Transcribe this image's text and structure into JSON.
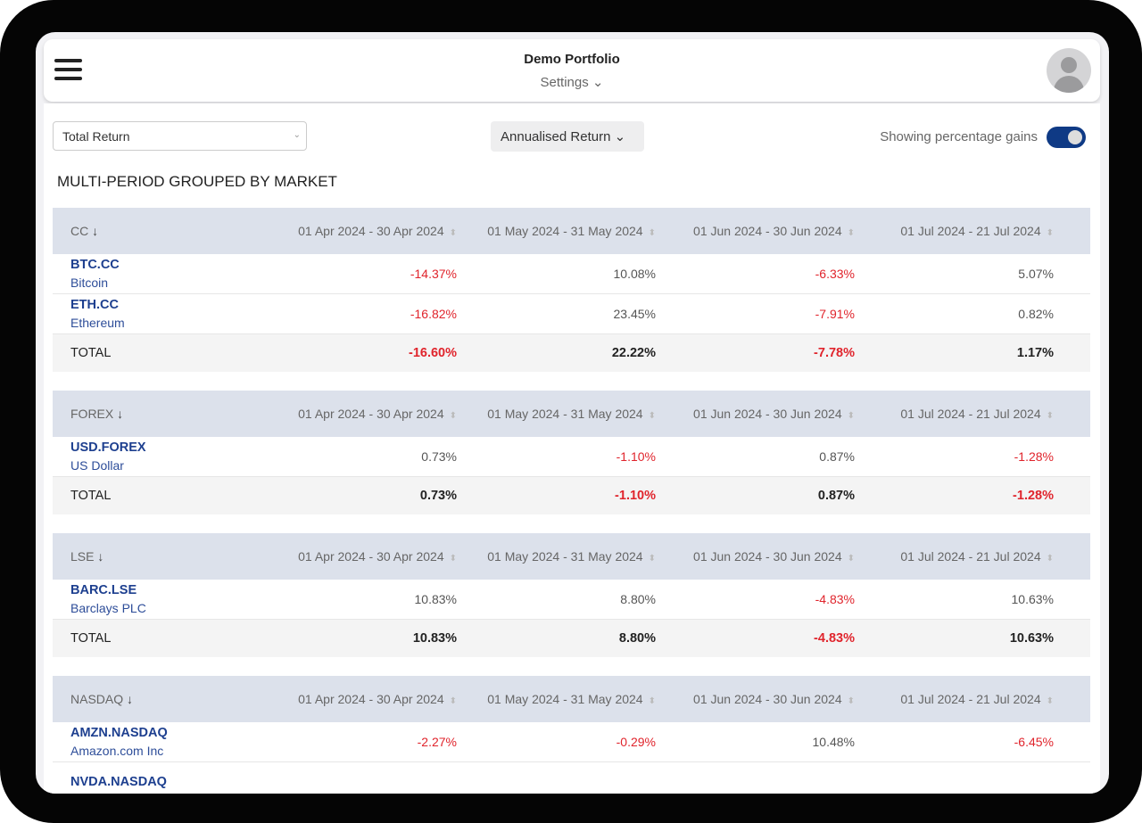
{
  "header": {
    "title": "Demo Portfolio",
    "settings": "Settings"
  },
  "controls": {
    "return_select": "Total Return",
    "annualised": "Annualised Return",
    "toggle_label": "Showing percentage gains",
    "toggle_on": true
  },
  "section_title": "MULTI-PERIOD GROUPED BY MARKET",
  "periods": [
    "01 Apr 2024 - 30 Apr 2024",
    "01 May 2024 - 31 May 2024",
    "01 Jun 2024 - 30 Jun 2024",
    "01 Jul 2024 - 21 Jul 2024"
  ],
  "total_label": "TOTAL",
  "colors": {
    "negative": "#e0242c",
    "accent": "#0f3a85",
    "ticker": "#1d3f8f"
  },
  "groups": [
    {
      "market": "CC",
      "rows": [
        {
          "ticker": "BTC.CC",
          "name": "Bitcoin",
          "values": [
            "-14.37%",
            "10.08%",
            "-6.33%",
            "5.07%"
          ]
        },
        {
          "ticker": "ETH.CC",
          "name": "Ethereum",
          "values": [
            "-16.82%",
            "23.45%",
            "-7.91%",
            "0.82%"
          ]
        }
      ],
      "total": [
        "-16.60%",
        "22.22%",
        "-7.78%",
        "1.17%"
      ]
    },
    {
      "market": "FOREX",
      "rows": [
        {
          "ticker": "USD.FOREX",
          "name": "US Dollar",
          "values": [
            "0.73%",
            "-1.10%",
            "0.87%",
            "-1.28%"
          ]
        }
      ],
      "total": [
        "0.73%",
        "-1.10%",
        "0.87%",
        "-1.28%"
      ]
    },
    {
      "market": "LSE",
      "rows": [
        {
          "ticker": "BARC.LSE",
          "name": "Barclays PLC",
          "values": [
            "10.83%",
            "8.80%",
            "-4.83%",
            "10.63%"
          ]
        }
      ],
      "total": [
        "10.83%",
        "8.80%",
        "-4.83%",
        "10.63%"
      ]
    },
    {
      "market": "NASDAQ",
      "rows": [
        {
          "ticker": "AMZN.NASDAQ",
          "name": "Amazon.com Inc",
          "values": [
            "-2.27%",
            "-0.29%",
            "10.48%",
            "-6.45%"
          ]
        },
        {
          "ticker": "NVDA.NASDAQ",
          "name": "",
          "values": []
        }
      ]
    }
  ]
}
